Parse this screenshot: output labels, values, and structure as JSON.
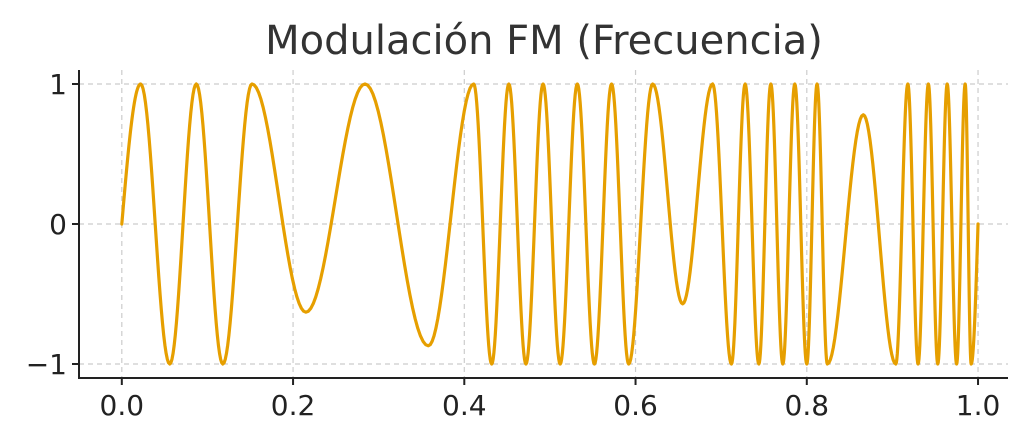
{
  "chart_data": {
    "type": "line",
    "title": "Modulación FM (Frecuencia)",
    "xlabel": "",
    "ylabel": "",
    "xlim": [
      -0.05,
      1.035
    ],
    "ylim": [
      -1.1,
      1.1
    ],
    "x_ticks": [
      0.0,
      0.2,
      0.4,
      0.6,
      0.8,
      1.0
    ],
    "x_tick_labels": [
      "0.0",
      "0.2",
      "0.4",
      "0.6",
      "0.8",
      "1.0"
    ],
    "y_ticks": [
      1,
      0,
      -1
    ],
    "y_tick_labels": [
      "1",
      "0",
      "−1"
    ],
    "grid": true,
    "series": [
      {
        "color": "#E69F00",
        "x": [
          0.0,
          0.022,
          0.056,
          0.087,
          0.118,
          0.152,
          0.215,
          0.284,
          0.358,
          0.411,
          0.432,
          0.452,
          0.472,
          0.492,
          0.512,
          0.532,
          0.552,
          0.572,
          0.592,
          0.62,
          0.655,
          0.69,
          0.712,
          0.728,
          0.744,
          0.758,
          0.772,
          0.786,
          0.8,
          0.812,
          0.824,
          0.866,
          0.904,
          0.918,
          0.93,
          0.942,
          0.953,
          0.964,
          0.975,
          0.985,
          0.992,
          1.0
        ],
        "y": [
          0.0,
          1.0,
          -1.0,
          1.0,
          -1.0,
          1.0,
          -0.63,
          1.0,
          -0.87,
          1.0,
          -1.0,
          1.0,
          -1.0,
          1.0,
          -1.0,
          1.0,
          -1.0,
          1.0,
          -1.0,
          1.0,
          -0.57,
          1.0,
          -1.0,
          1.0,
          -1.0,
          1.0,
          -1.0,
          1.0,
          -1.0,
          1.0,
          -1.0,
          0.78,
          -1.0,
          1.0,
          -1.0,
          1.0,
          -1.0,
          1.0,
          -1.0,
          1.0,
          -1.0,
          0.0
        ]
      }
    ]
  }
}
